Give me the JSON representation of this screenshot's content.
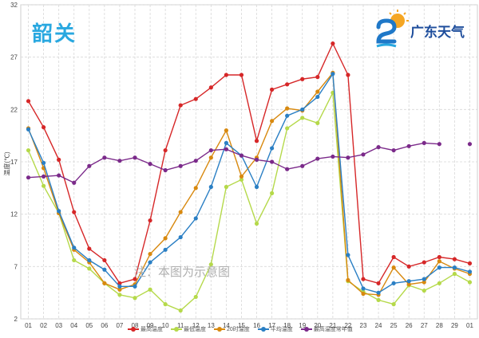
{
  "header": {
    "city": "韶关",
    "brand": "广东天气"
  },
  "watermark": "注：本图为示意图",
  "colors": {
    "highest": "#d62728",
    "lowest": "#b5d94a",
    "t20": "#d8890f",
    "mean": "#2a7fc4",
    "normal_mean": "#7b2a8a"
  },
  "chart_data": {
    "type": "line",
    "ylabel": "温度(℃)",
    "ylim": [
      2,
      32
    ],
    "yticks": [
      2,
      7,
      12,
      17,
      22,
      27,
      32
    ],
    "grid": true,
    "legend_position": "bottom",
    "categories": [
      "01",
      "02",
      "03",
      "04",
      "05",
      "06",
      "07",
      "08",
      "09",
      "10",
      "11",
      "12",
      "13",
      "14",
      "15",
      "16",
      "17",
      "18",
      "19",
      "20",
      "21",
      "22",
      "23",
      "24",
      "25",
      "26",
      "27",
      "28",
      "29",
      "01"
    ],
    "series": [
      {
        "name": "最高温度",
        "color_key": "highest",
        "values": [
          22.8,
          20.3,
          17.2,
          12.2,
          8.7,
          7.6,
          5.4,
          5.8,
          11.4,
          18.1,
          22.4,
          23.0,
          24.1,
          25.3,
          25.3,
          19.0,
          23.9,
          24.4,
          24.9,
          25.1,
          28.3,
          25.3,
          5.8,
          5.4,
          7.9,
          7.0,
          7.4,
          7.9,
          7.7,
          7.3
        ]
      },
      {
        "name": "最低温度",
        "color_key": "lowest",
        "values": [
          18.1,
          14.7,
          12.1,
          7.6,
          6.8,
          5.4,
          4.3,
          4.0,
          4.8,
          3.4,
          2.8,
          4.1,
          7.2,
          14.6,
          15.3,
          11.1,
          14.0,
          20.2,
          21.2,
          20.7,
          23.6,
          5.6,
          4.6,
          3.8,
          3.4,
          5.2,
          4.7,
          5.4,
          6.3,
          5.5
        ]
      },
      {
        "name": "20时温度",
        "color_key": "t20",
        "values": [
          20.2,
          16.4,
          12.1,
          8.6,
          7.4,
          5.4,
          4.8,
          5.3,
          8.2,
          9.7,
          12.2,
          14.5,
          17.4,
          20.0,
          15.6,
          17.4,
          20.9,
          22.1,
          21.9,
          23.7,
          25.5,
          5.7,
          4.4,
          4.3,
          6.9,
          5.3,
          5.5,
          7.5,
          6.8,
          6.3
        ]
      },
      {
        "name": "平均温度",
        "color_key": "mean",
        "values": [
          20.1,
          16.9,
          12.3,
          8.8,
          7.6,
          6.7,
          5.1,
          5.1,
          7.4,
          8.6,
          9.8,
          11.6,
          14.6,
          18.8,
          17.6,
          14.6,
          18.3,
          21.4,
          22.0,
          23.2,
          25.4,
          8.1,
          4.9,
          4.5,
          5.4,
          5.6,
          5.8,
          6.9,
          6.9,
          6.5
        ]
      },
      {
        "name": "最高温度常年值",
        "color_key": "normal_mean",
        "values": [
          15.5,
          15.6,
          15.7,
          15.0,
          16.6,
          17.4,
          17.1,
          17.4,
          16.8,
          16.2,
          16.6,
          17.1,
          18.1,
          18.2,
          17.6,
          17.2,
          17.0,
          16.3,
          16.6,
          17.3,
          17.5,
          17.4,
          17.7,
          18.4,
          18.1,
          18.5,
          18.8,
          18.7,
          null,
          18.7
        ]
      }
    ]
  }
}
